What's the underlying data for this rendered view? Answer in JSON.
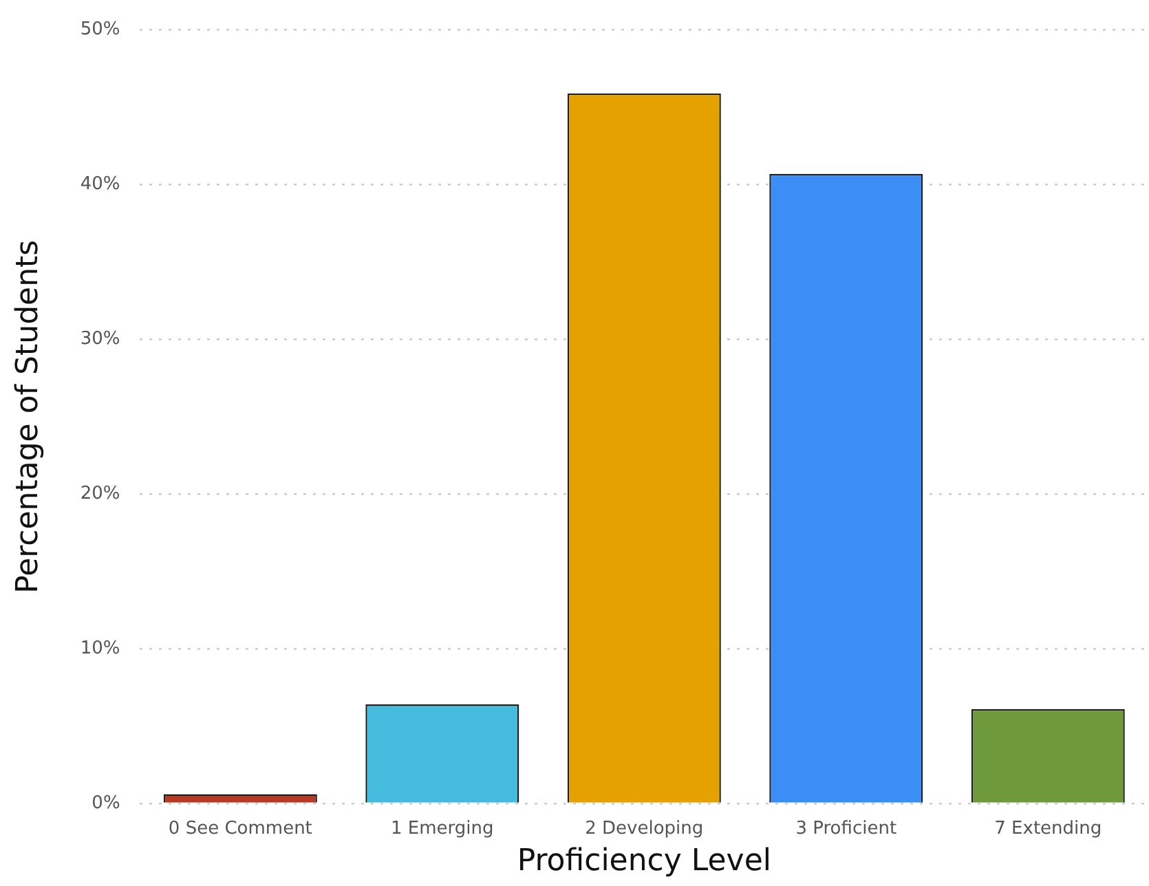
{
  "chart_data": {
    "type": "bar",
    "xlabel": "Proficiency Level",
    "ylabel": "Percentage of Students",
    "categories": [
      "0 See Comment",
      "1 Emerging",
      "2 Developing",
      "3 Proficient",
      "7 Extending"
    ],
    "values": [
      0.6,
      6.4,
      45.9,
      40.7,
      6.1
    ],
    "colors": [
      "#b83a22",
      "#45bbdd",
      "#e5a100",
      "#3a8ef6",
      "#6f9a3c"
    ],
    "ylim": [
      0,
      50
    ],
    "yticks": [
      {
        "value": 0,
        "label": "0%"
      },
      {
        "value": 10,
        "label": "10%"
      },
      {
        "value": 20,
        "label": "20%"
      },
      {
        "value": 30,
        "label": "30%"
      },
      {
        "value": 40,
        "label": "40%"
      },
      {
        "value": 50,
        "label": "50%"
      }
    ],
    "grid": "y",
    "legend": false
  }
}
